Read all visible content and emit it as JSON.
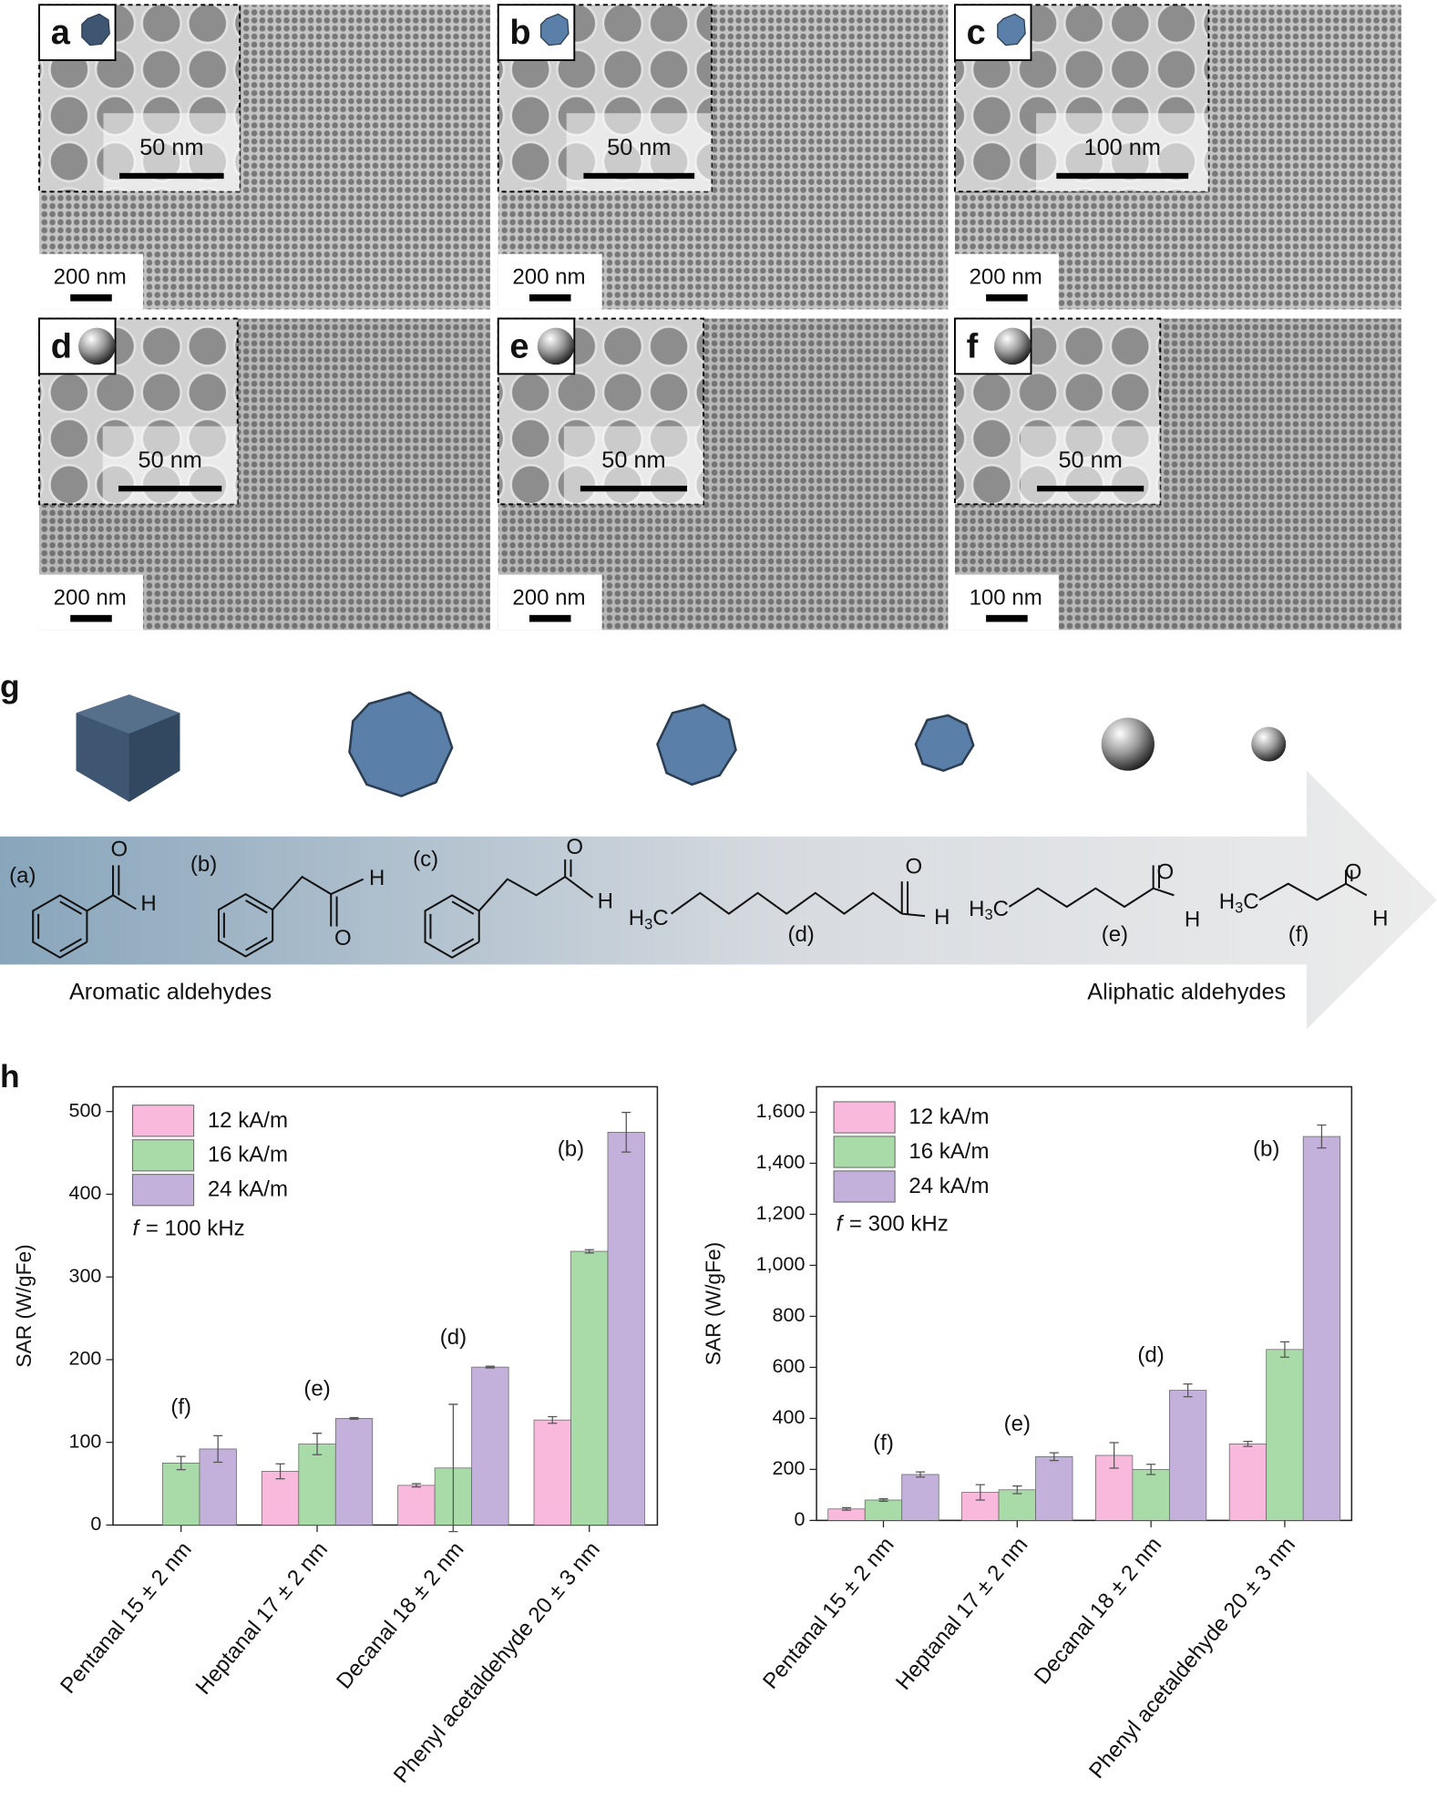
{
  "panels": [
    {
      "letter": "a",
      "scale_bar": "200 nm",
      "inset_scale_bar": "50 nm"
    },
    {
      "letter": "b",
      "scale_bar": "200 nm",
      "inset_scale_bar": "50 nm"
    },
    {
      "letter": "c",
      "scale_bar": "200 nm",
      "inset_scale_bar": "100 nm"
    },
    {
      "letter": "d",
      "scale_bar": "200 nm",
      "inset_scale_bar": "50 nm"
    },
    {
      "letter": "e",
      "scale_bar": "200 nm",
      "inset_scale_bar": "50 nm"
    },
    {
      "letter": "f",
      "scale_bar": "100 nm",
      "inset_scale_bar": "50 nm"
    }
  ],
  "scheme": {
    "letter": "g",
    "structures": [
      {
        "label": "(a)",
        "atoms": [
          "O",
          "H"
        ]
      },
      {
        "label": "(b)",
        "atoms": [
          "O",
          "H"
        ]
      },
      {
        "label": "(c)",
        "atoms": [
          "O",
          "H"
        ]
      },
      {
        "label": "(d)",
        "atoms": [
          "O",
          "H"
        ],
        "methyl": [
          "H",
          "3",
          "C"
        ]
      },
      {
        "label": "(e)",
        "atoms": [
          "O",
          "H"
        ],
        "methyl": [
          "H",
          "3",
          "C"
        ]
      },
      {
        "label": "(f)",
        "atoms": [
          "O",
          "H"
        ],
        "methyl": [
          "H",
          "3",
          "C"
        ]
      }
    ],
    "left_label": "Aromatic aldehydes",
    "right_label": "Aliphatic aldehydes"
  },
  "chart_letter": "h",
  "chart_data": [
    {
      "type": "bar",
      "y_label": "SAR (W/gFe)",
      "categories": [
        "Pentanal 15 ± 2 nm",
        "Heptanal 17 ± 2 nm",
        "Decanal 18 ± 2 nm",
        "Phenyl acetaldehyde 20 ± 3 nm"
      ],
      "annotations": [
        "(f)",
        "(e)",
        "(d)",
        "(b)"
      ],
      "series": [
        {
          "name": "12 kA/m",
          "color": "#f9b9dc",
          "values": [
            null,
            65,
            48,
            127
          ],
          "errors": [
            null,
            9,
            2,
            4
          ]
        },
        {
          "name": "16 kA/m",
          "color": "#a8dba8",
          "values": [
            75,
            98,
            69,
            331
          ],
          "errors": [
            8,
            13,
            77,
            2
          ]
        },
        {
          "name": "24 kA/m",
          "color": "#c3b1dc",
          "values": [
            92,
            129,
            191,
            475
          ],
          "errors": [
            16,
            1,
            1,
            24
          ]
        }
      ],
      "note": [
        "f",
        "= 100 kHz"
      ],
      "legend": "upper left",
      "ylim": [
        0,
        530
      ],
      "yticks": [
        0,
        100,
        200,
        300,
        400,
        500
      ]
    },
    {
      "type": "bar",
      "y_label": "SAR (W/gFe)",
      "categories": [
        "Pentanal 15 ± 2 nm",
        "Heptanal 17 ± 2 nm",
        "Decanal 18 ± 2 nm",
        "Phenyl acetaldehyde 20 ± 3 nm"
      ],
      "annotations": [
        "(f)",
        "(e)",
        "(d)",
        "(b)"
      ],
      "series": [
        {
          "name": "12 kA/m",
          "color": "#f9b9dc",
          "values": [
            45,
            110,
            255,
            300
          ],
          "errors": [
            5,
            30,
            50,
            10
          ]
        },
        {
          "name": "16 kA/m",
          "color": "#a8dba8",
          "values": [
            80,
            120,
            200,
            670
          ],
          "errors": [
            5,
            15,
            20,
            30
          ]
        },
        {
          "name": "24 kA/m",
          "color": "#c3b1dc",
          "values": [
            180,
            250,
            510,
            1505
          ],
          "errors": [
            10,
            15,
            25,
            45
          ]
        }
      ],
      "note": [
        "f",
        "= 300 kHz"
      ],
      "legend": "upper left",
      "ylim": [
        0,
        1700
      ],
      "yticks": [
        0,
        200,
        400,
        600,
        800,
        {
          "value": 1000,
          "label": "1,000"
        },
        {
          "value": 1200,
          "label": "1,200"
        },
        {
          "value": 1400,
          "label": "1,400"
        },
        {
          "value": 1600,
          "label": "1,600"
        }
      ]
    }
  ]
}
